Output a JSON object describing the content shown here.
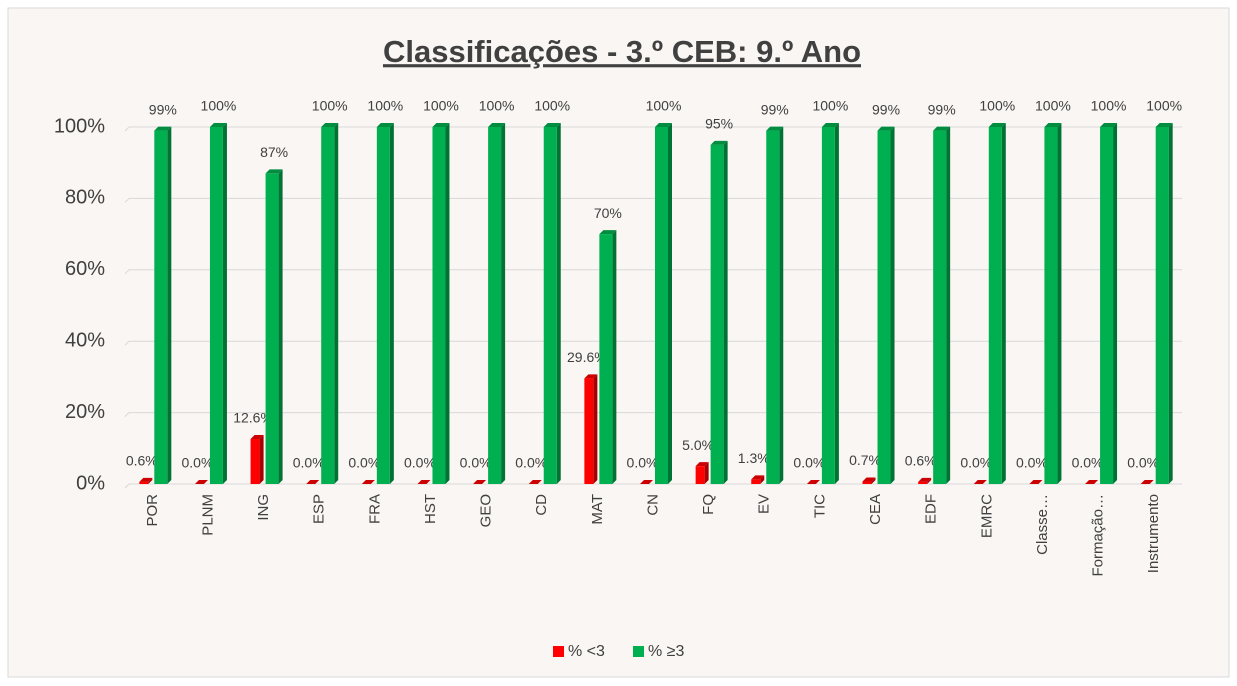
{
  "chart_data": {
    "type": "bar",
    "title": "Classificações - 3.º CEB: 9.º Ano",
    "categories": [
      "POR",
      "PLNM",
      "ING",
      "ESP",
      "FRA",
      "HST",
      "GEO",
      "CD",
      "MAT",
      "CN",
      "FQ",
      "EV",
      "TIC",
      "CEA",
      "EDF",
      "EMRC",
      "Classe…",
      "Formação…",
      "Instrumento"
    ],
    "series": [
      {
        "name": "% <3",
        "color": "#ff0000",
        "values": [
          0.6,
          0.0,
          12.6,
          0.0,
          0.0,
          0.0,
          0.0,
          0.0,
          29.6,
          0.0,
          5.0,
          1.3,
          0.0,
          0.7,
          0.6,
          0.0,
          0.0,
          0.0,
          0.0
        ],
        "value_labels": [
          "0.6%",
          "0.0%",
          "12.6%",
          "0.0%",
          "0.0%",
          "0.0%",
          "0.0%",
          "0.0%",
          "29.6%",
          "0.0%",
          "5.0%",
          "1.3%",
          "0.0%",
          "0.7%",
          "0.6%",
          "0.0%",
          "0.0%",
          "0.0%",
          "0.0%"
        ]
      },
      {
        "name": "% ≥3",
        "color": "#00b050",
        "values": [
          99,
          100,
          87,
          100,
          100,
          100,
          100,
          100,
          70,
          100,
          95,
          99,
          100,
          99,
          99,
          100,
          100,
          100,
          100
        ],
        "value_labels": [
          "99%",
          "100%",
          "87%",
          "100%",
          "100%",
          "100%",
          "100%",
          "100%",
          "70%",
          "100%",
          "95%",
          "99%",
          "100%",
          "99%",
          "99%",
          "100%",
          "100%",
          "100%",
          "100%"
        ]
      }
    ],
    "ylim": [
      0,
      100
    ],
    "yticks": [
      {
        "value": 0,
        "label": "0%"
      },
      {
        "value": 20,
        "label": "20%"
      },
      {
        "value": 40,
        "label": "40%"
      },
      {
        "value": 60,
        "label": "60%"
      },
      {
        "value": 80,
        "label": "80%"
      },
      {
        "value": 100,
        "label": "100%"
      }
    ],
    "grid": true,
    "legend": "bottom"
  }
}
